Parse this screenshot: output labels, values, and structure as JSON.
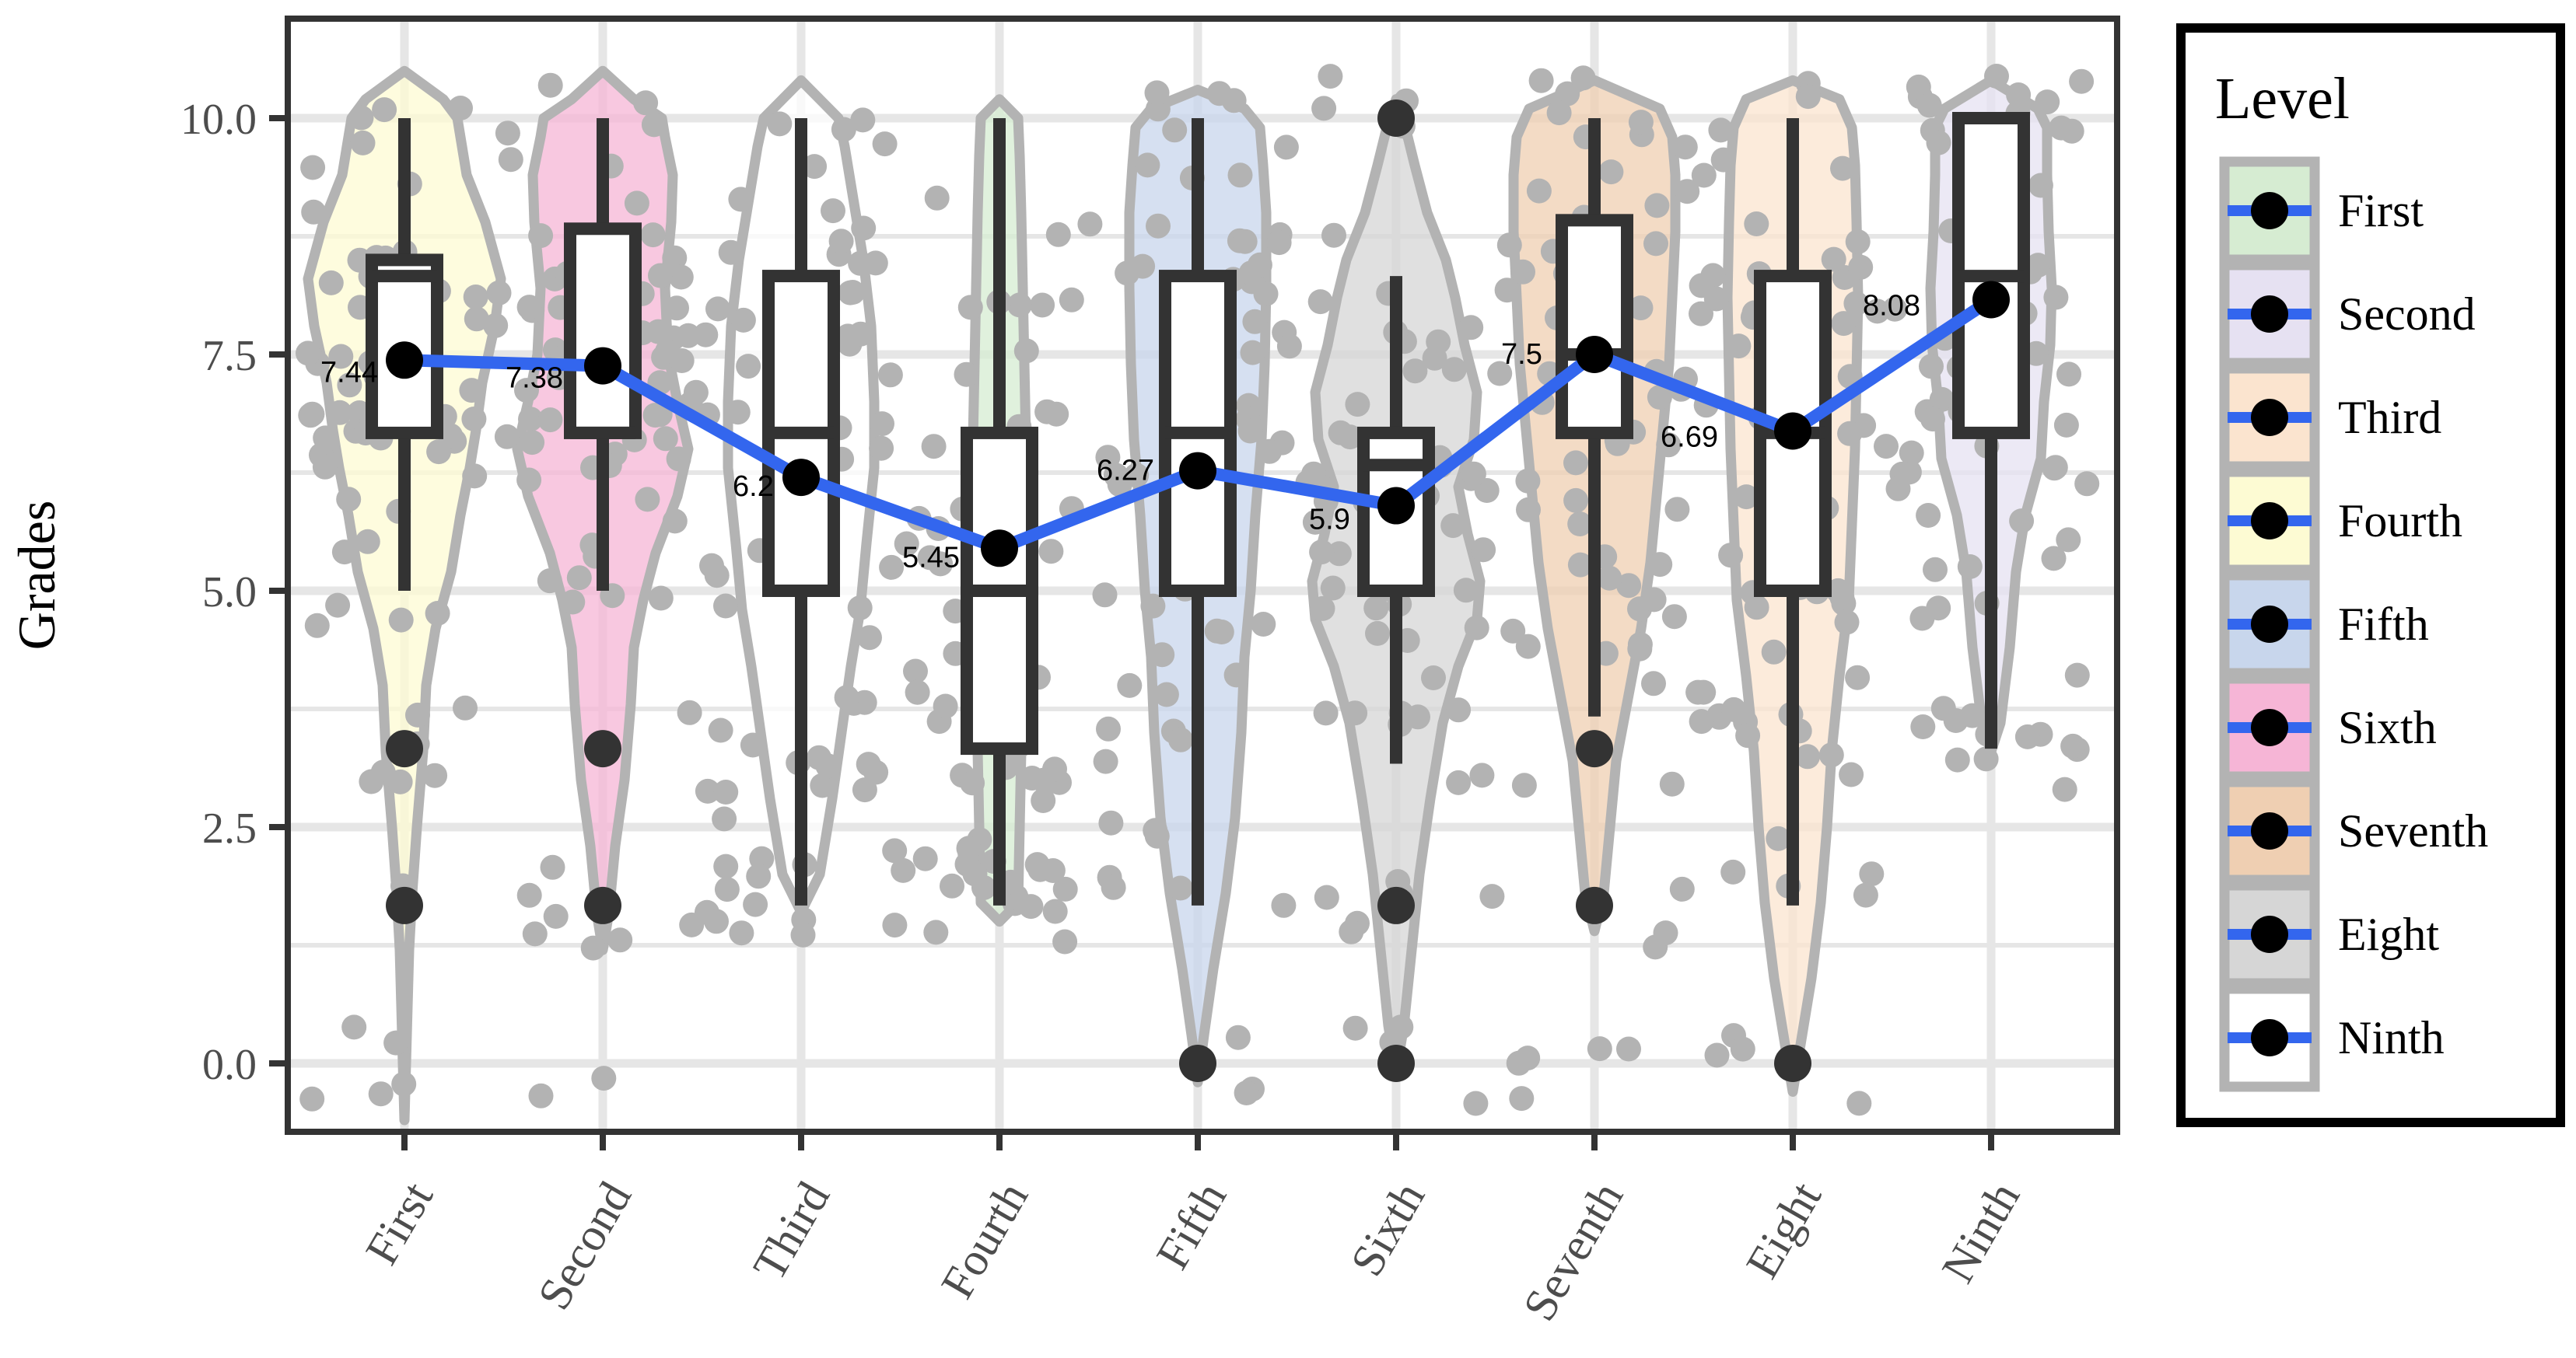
{
  "chart_data": {
    "type": "violin-box",
    "title": "",
    "xlabel": "",
    "ylabel": "Grades",
    "ylim": [
      -0.6,
      11.2
    ],
    "yticks": [
      0.0,
      2.5,
      5.0,
      7.5,
      10.0
    ],
    "ytick_labels": [
      "0.0",
      "2.5",
      "5.0",
      "7.5",
      "10.0"
    ],
    "grid": true,
    "legend": {
      "title": "Level",
      "placement": "right",
      "entries": [
        "First",
        "Second",
        "Third",
        "Fourth",
        "Fifth",
        "Sixth",
        "Seventh",
        "Eight",
        "Ninth"
      ],
      "fills": [
        "#d6ecd2",
        "#e6e1f2",
        "#fbe4cf",
        "#fdfbd3",
        "#c8d6ec",
        "#f6b5d6",
        "#efcfb2",
        "#d6d6d6",
        "#ffffff"
      ]
    },
    "categories": [
      "First",
      "Second",
      "Third",
      "Fourth",
      "Fifth",
      "Sixth",
      "Seventh",
      "Eight",
      "Ninth"
    ],
    "violin_fills": [
      "#fdfbd3",
      "#f6b5d6",
      "#ffffff",
      "#d6ecd2",
      "#c8d6ec",
      "#d6d6d6",
      "#efcfb2",
      "#fbe4cf",
      "#e6e1f2"
    ],
    "boxes": [
      {
        "min": 5.0,
        "q1": 6.67,
        "median": 8.33,
        "q3": 8.5,
        "max": 10.0,
        "outliers": [
          3.33,
          1.67
        ]
      },
      {
        "min": 5.0,
        "q1": 6.67,
        "median": 6.67,
        "q3": 8.83,
        "max": 10.0,
        "outliers": [
          3.33,
          1.67
        ]
      },
      {
        "min": 1.67,
        "q1": 5.0,
        "median": 6.67,
        "q3": 8.33,
        "max": 10.0,
        "outliers": []
      },
      {
        "min": 1.67,
        "q1": 3.33,
        "median": 5.0,
        "q3": 6.67,
        "max": 10.0,
        "outliers": []
      },
      {
        "min": 1.67,
        "q1": 5.0,
        "median": 6.67,
        "q3": 8.33,
        "max": 10.0,
        "outliers": [
          0.0
        ]
      },
      {
        "min": 3.17,
        "q1": 5.0,
        "median": 6.33,
        "q3": 6.67,
        "max": 8.33,
        "outliers": [
          10.0,
          1.67,
          0.0
        ]
      },
      {
        "min": 3.67,
        "q1": 6.67,
        "median": 7.5,
        "q3": 8.92,
        "max": 10.0,
        "outliers": [
          3.33,
          1.67
        ]
      },
      {
        "min": 1.67,
        "q1": 5.0,
        "median": 6.67,
        "q3": 8.33,
        "max": 10.0,
        "outliers": [
          0.0
        ]
      },
      {
        "min": 3.33,
        "q1": 6.67,
        "median": 8.33,
        "q3": 10.0,
        "max": 10.0,
        "outliers": []
      }
    ],
    "violins": [
      [
        [
          -0.6,
          0
        ],
        [
          1.2,
          0.03
        ],
        [
          1.8,
          0.05
        ],
        [
          2.5,
          0.08
        ],
        [
          3.3,
          0.12
        ],
        [
          4.0,
          0.14
        ],
        [
          4.6,
          0.2
        ],
        [
          5.2,
          0.3
        ],
        [
          5.8,
          0.36
        ],
        [
          6.3,
          0.42
        ],
        [
          6.7,
          0.46
        ],
        [
          7.2,
          0.5
        ],
        [
          7.8,
          0.58
        ],
        [
          8.3,
          0.62
        ],
        [
          8.9,
          0.52
        ],
        [
          9.4,
          0.4
        ],
        [
          9.8,
          0.36
        ],
        [
          10.0,
          0.34
        ],
        [
          10.2,
          0.25
        ],
        [
          10.5,
          0
        ]
      ],
      [
        [
          1.2,
          0
        ],
        [
          1.6,
          0.04
        ],
        [
          2.3,
          0.08
        ],
        [
          3.0,
          0.14
        ],
        [
          3.8,
          0.18
        ],
        [
          4.4,
          0.2
        ],
        [
          4.9,
          0.26
        ],
        [
          5.4,
          0.34
        ],
        [
          6.0,
          0.48
        ],
        [
          6.5,
          0.55
        ],
        [
          7.0,
          0.48
        ],
        [
          7.5,
          0.42
        ],
        [
          8.2,
          0.4
        ],
        [
          8.9,
          0.44
        ],
        [
          9.4,
          0.45
        ],
        [
          9.8,
          0.4
        ],
        [
          10.0,
          0.38
        ],
        [
          10.2,
          0.2
        ],
        [
          10.5,
          0
        ]
      ],
      [
        [
          1.6,
          0
        ],
        [
          2.0,
          0.12
        ],
        [
          2.8,
          0.2
        ],
        [
          3.5,
          0.26
        ],
        [
          4.2,
          0.32
        ],
        [
          4.8,
          0.38
        ],
        [
          5.5,
          0.42
        ],
        [
          6.3,
          0.47
        ],
        [
          7.0,
          0.47
        ],
        [
          7.8,
          0.45
        ],
        [
          8.5,
          0.4
        ],
        [
          9.2,
          0.33
        ],
        [
          9.7,
          0.28
        ],
        [
          10.0,
          0.24
        ],
        [
          10.2,
          0.12
        ],
        [
          10.4,
          0
        ]
      ],
      [
        [
          1.5,
          0
        ],
        [
          1.7,
          0.12
        ],
        [
          2.5,
          0.13
        ],
        [
          3.3,
          0.14
        ],
        [
          4.2,
          0.15
        ],
        [
          5.0,
          0.16
        ],
        [
          5.8,
          0.17
        ],
        [
          6.6,
          0.17
        ],
        [
          7.4,
          0.16
        ],
        [
          8.2,
          0.15
        ],
        [
          9.0,
          0.14
        ],
        [
          9.6,
          0.13
        ],
        [
          10.0,
          0.12
        ],
        [
          10.2,
          0
        ]
      ],
      [
        [
          -0.2,
          0
        ],
        [
          0.3,
          0.04
        ],
        [
          1.0,
          0.1
        ],
        [
          1.8,
          0.18
        ],
        [
          2.6,
          0.24
        ],
        [
          3.5,
          0.28
        ],
        [
          4.3,
          0.3
        ],
        [
          5.0,
          0.34
        ],
        [
          5.8,
          0.37
        ],
        [
          6.6,
          0.41
        ],
        [
          7.4,
          0.43
        ],
        [
          8.2,
          0.44
        ],
        [
          9.0,
          0.44
        ],
        [
          9.5,
          0.42
        ],
        [
          9.9,
          0.4
        ],
        [
          10.1,
          0.3
        ],
        [
          10.3,
          0
        ]
      ],
      [
        [
          -0.1,
          0
        ],
        [
          0.4,
          0.05
        ],
        [
          1.2,
          0.1
        ],
        [
          2.0,
          0.15
        ],
        [
          2.8,
          0.22
        ],
        [
          3.6,
          0.3
        ],
        [
          4.2,
          0.4
        ],
        [
          4.7,
          0.52
        ],
        [
          5.1,
          0.54
        ],
        [
          5.6,
          0.46
        ],
        [
          6.1,
          0.4
        ],
        [
          6.6,
          0.5
        ],
        [
          7.1,
          0.52
        ],
        [
          7.6,
          0.44
        ],
        [
          8.1,
          0.38
        ],
        [
          8.5,
          0.32
        ],
        [
          9.0,
          0.2
        ],
        [
          9.5,
          0.12
        ],
        [
          9.9,
          0.06
        ],
        [
          10.2,
          0
        ]
      ],
      [
        [
          1.4,
          0
        ],
        [
          1.8,
          0.06
        ],
        [
          2.5,
          0.1
        ],
        [
          3.2,
          0.14
        ],
        [
          3.9,
          0.22
        ],
        [
          4.6,
          0.3
        ],
        [
          5.3,
          0.36
        ],
        [
          6.0,
          0.4
        ],
        [
          6.7,
          0.44
        ],
        [
          7.4,
          0.48
        ],
        [
          8.1,
          0.5
        ],
        [
          8.8,
          0.52
        ],
        [
          9.4,
          0.52
        ],
        [
          9.8,
          0.5
        ],
        [
          10.1,
          0.42
        ],
        [
          10.4,
          0
        ]
      ],
      [
        [
          -0.3,
          0
        ],
        [
          0.2,
          0.05
        ],
        [
          0.9,
          0.12
        ],
        [
          1.7,
          0.18
        ],
        [
          2.5,
          0.22
        ],
        [
          3.3,
          0.25
        ],
        [
          4.1,
          0.3
        ],
        [
          4.9,
          0.36
        ],
        [
          5.7,
          0.38
        ],
        [
          6.5,
          0.4
        ],
        [
          7.3,
          0.41
        ],
        [
          8.1,
          0.42
        ],
        [
          8.9,
          0.41
        ],
        [
          9.5,
          0.4
        ],
        [
          9.9,
          0.38
        ],
        [
          10.2,
          0.3
        ],
        [
          10.4,
          0
        ]
      ],
      [
        [
          3.3,
          0
        ],
        [
          3.6,
          0.06
        ],
        [
          4.4,
          0.12
        ],
        [
          5.2,
          0.16
        ],
        [
          5.8,
          0.22
        ],
        [
          6.4,
          0.32
        ],
        [
          7.0,
          0.34
        ],
        [
          7.6,
          0.38
        ],
        [
          8.2,
          0.39
        ],
        [
          8.8,
          0.37
        ],
        [
          9.4,
          0.36
        ],
        [
          9.9,
          0.36
        ],
        [
          10.1,
          0.3
        ],
        [
          10.4,
          0
        ]
      ]
    ],
    "mean_line": {
      "values": [
        7.44,
        7.38,
        6.2,
        5.45,
        6.27,
        5.9,
        7.5,
        6.69,
        8.08
      ],
      "labels": [
        "7.44",
        "7.38",
        "6.2",
        "5.45",
        "6.27",
        "5.9",
        "7.5",
        "6.69",
        "8.08"
      ],
      "color": "#3366ee"
    },
    "colors": {
      "violin_outline": "#b3b3b3",
      "jitter_points": "#b3b3b3",
      "box_stroke": "#333333",
      "outlier_points": "#333333",
      "mean_points": "#000000",
      "grid": "#e6e6e6"
    }
  }
}
